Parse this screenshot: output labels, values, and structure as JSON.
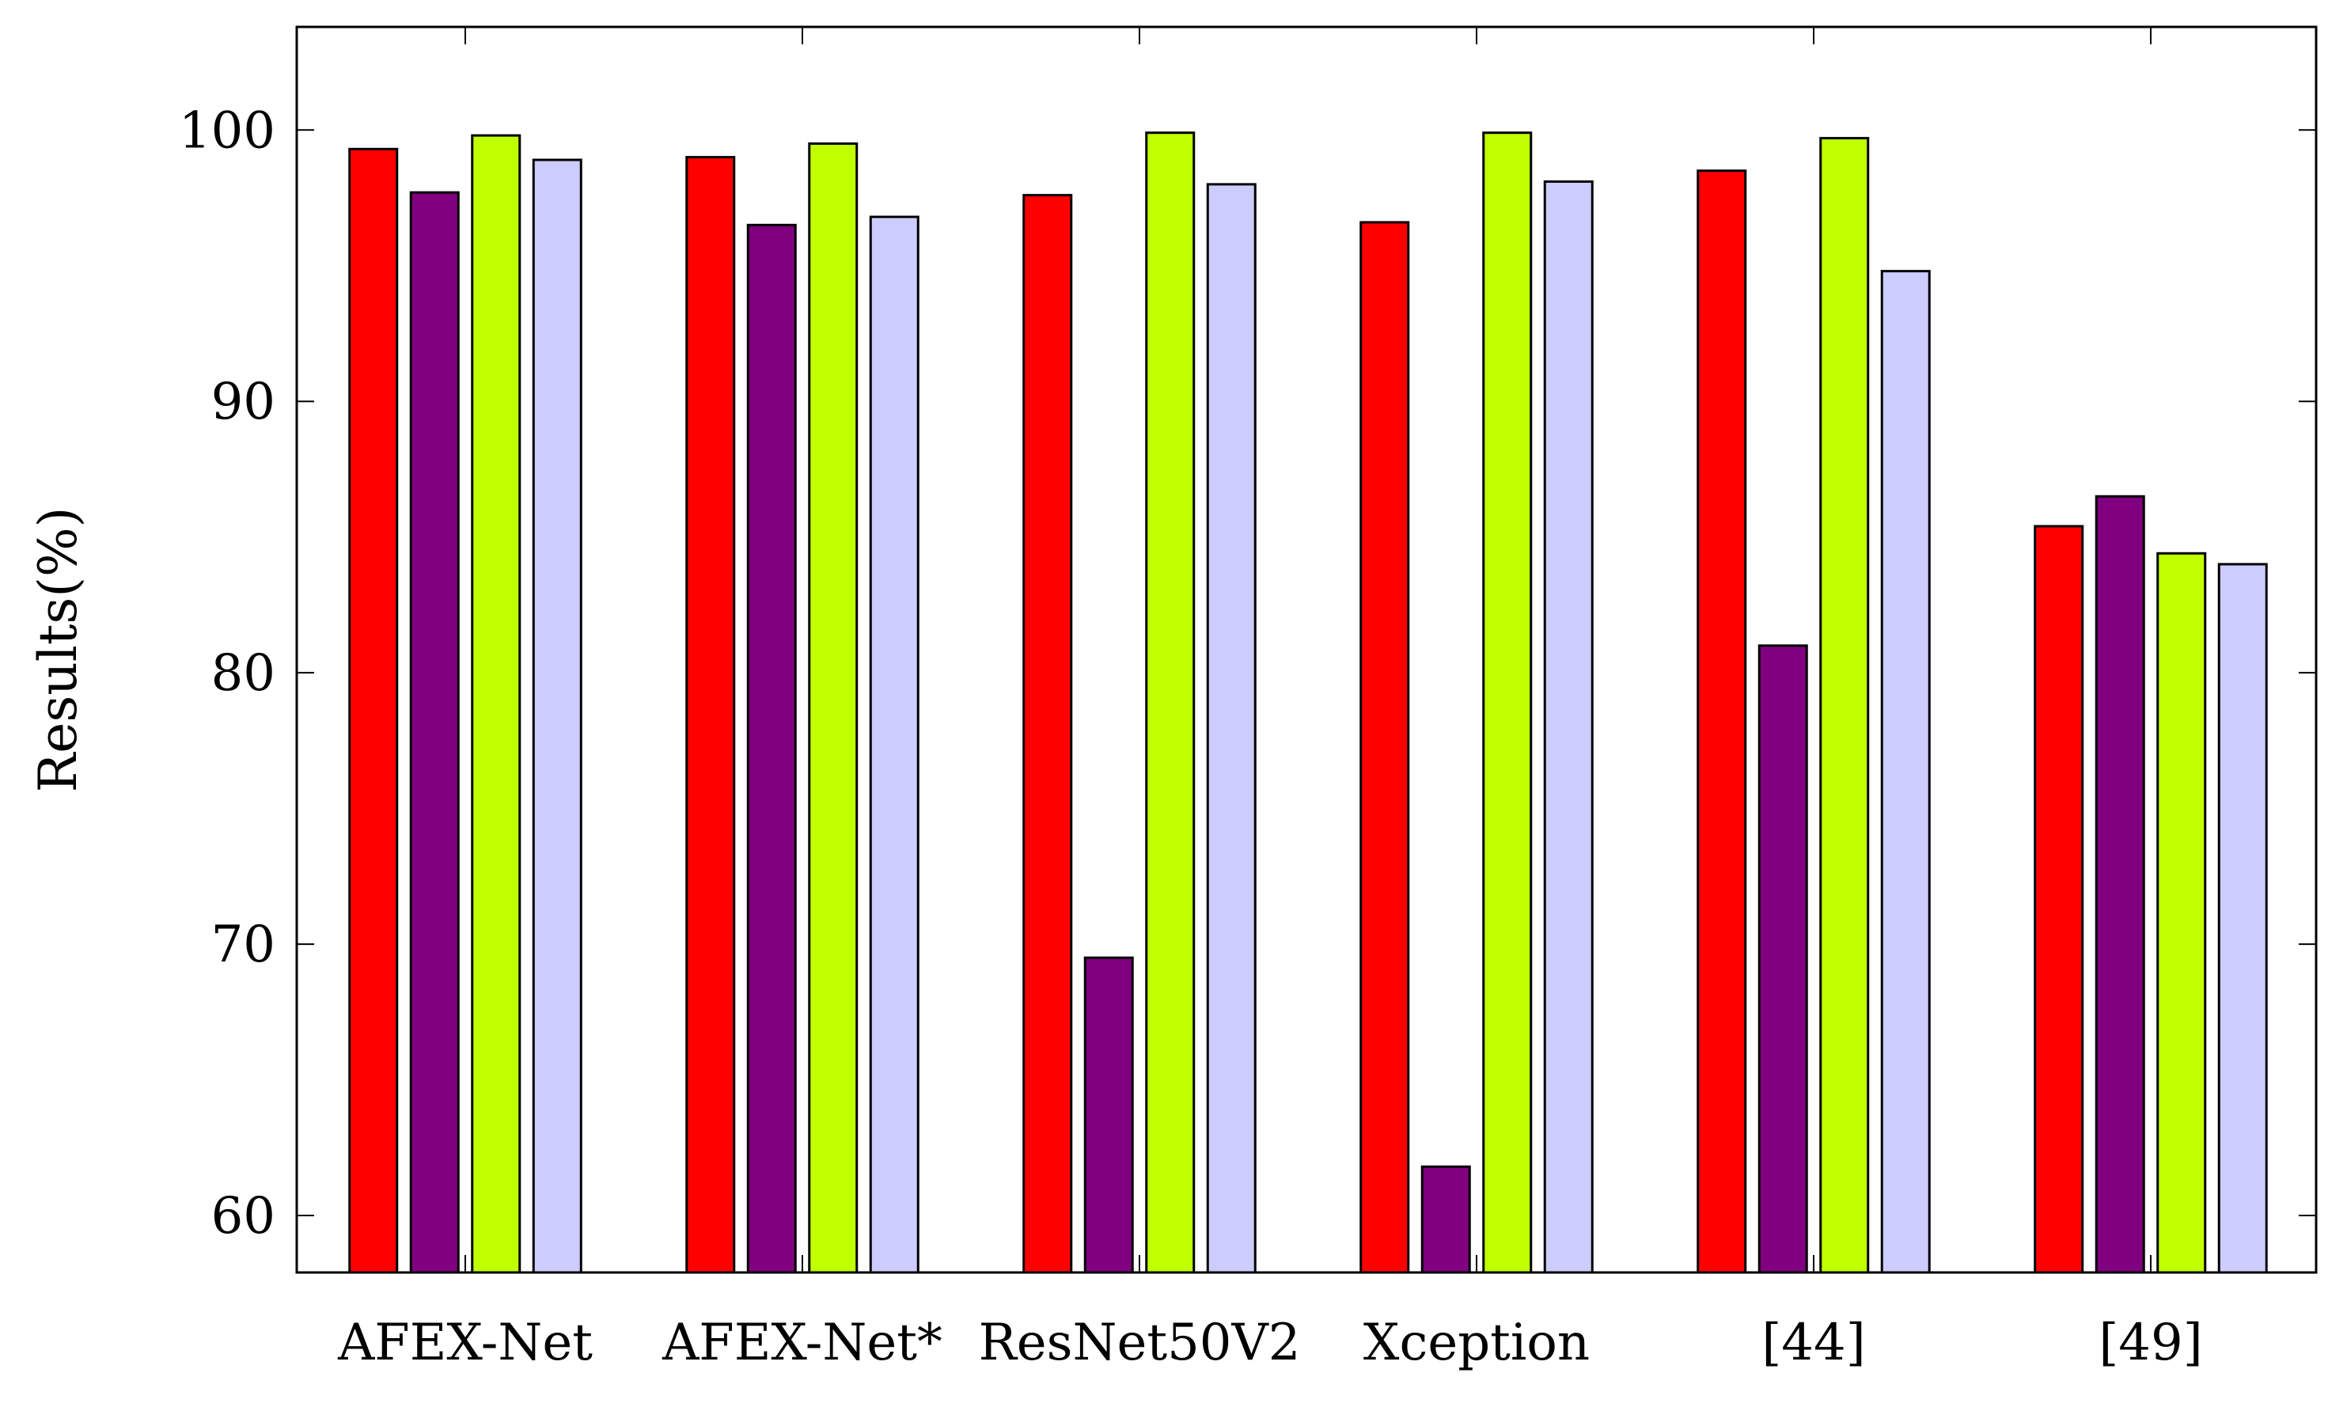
{
  "chart_data": {
    "type": "bar",
    "title": "",
    "xlabel": "",
    "ylabel": "Results(%)",
    "categories": [
      "AFEX-Net",
      "AFEX-Net*",
      "ResNet50V2",
      "Xception",
      "[44]",
      "[49]"
    ],
    "series": [
      {
        "color": "#ff0000",
        "values": [
          99.3,
          99.0,
          97.6,
          96.6,
          98.5,
          85.4
        ]
      },
      {
        "color": "#800080",
        "values": [
          97.7,
          96.5,
          69.5,
          61.8,
          81.0,
          86.5
        ]
      },
      {
        "color": "#bfff00",
        "values": [
          99.8,
          99.5,
          99.9,
          99.9,
          99.7,
          84.4
        ]
      },
      {
        "color": "#ccccff",
        "values": [
          98.9,
          96.8,
          98.0,
          98.1,
          94.8,
          84.0
        ]
      }
    ],
    "ylim": [
      57.9,
      103.8
    ],
    "yticks": [
      60,
      70,
      80,
      90,
      100
    ],
    "grid": false,
    "legend": "none"
  }
}
